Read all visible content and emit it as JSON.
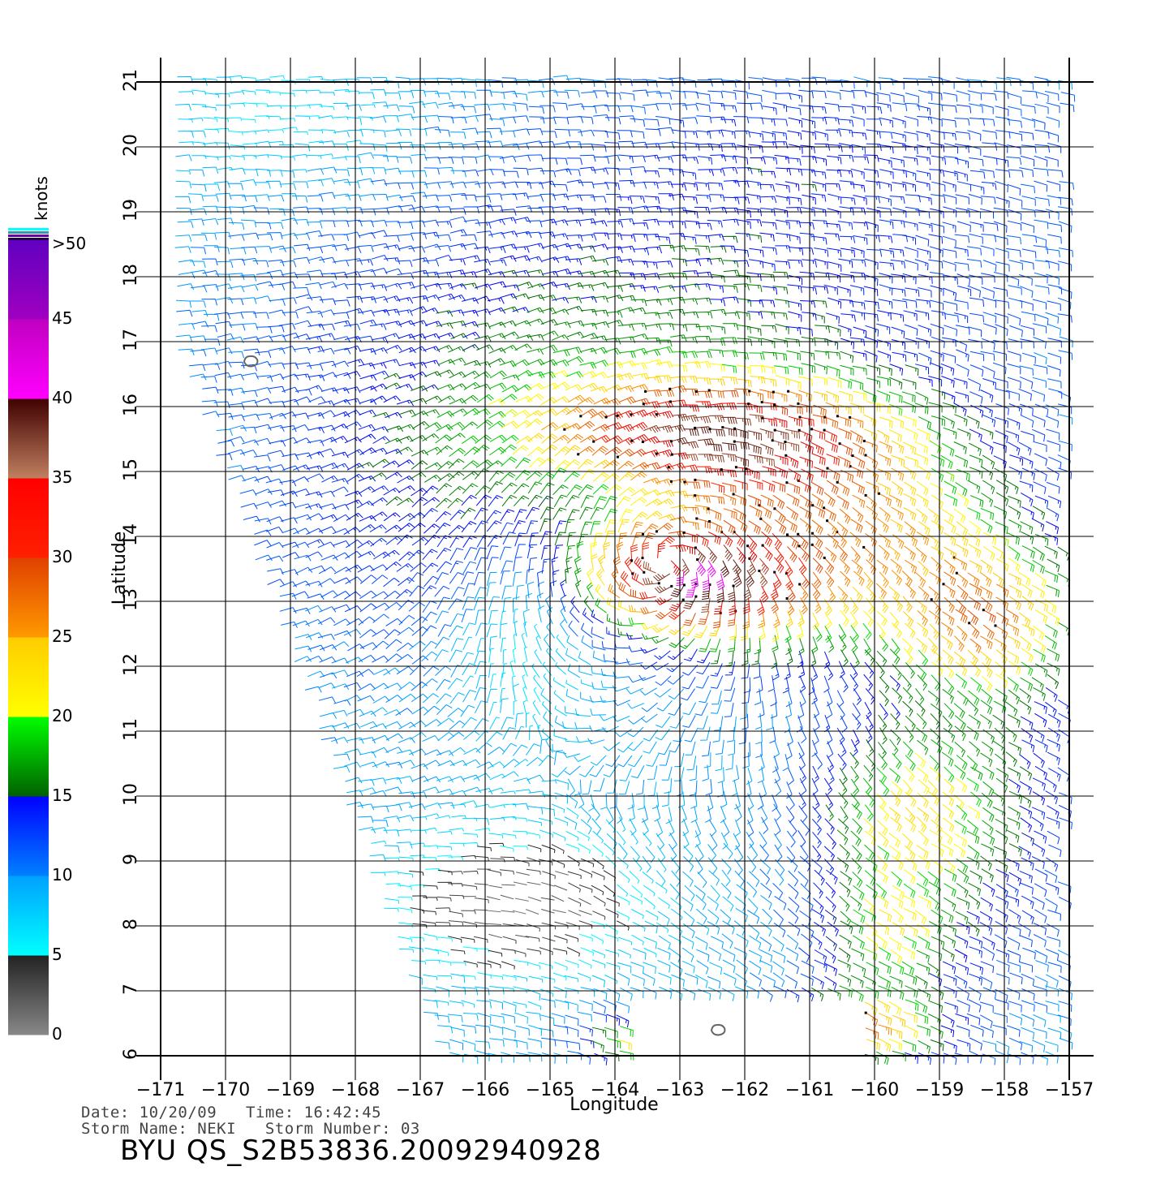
{
  "map": {
    "lon_range": [
      -171,
      -157
    ],
    "lat_range": [
      6,
      21
    ],
    "lon_ticks": [
      "−171",
      "−170",
      "−169",
      "−168",
      "−167",
      "−166",
      "−165",
      "−164",
      "−163",
      "−162",
      "−161",
      "−160",
      "−159",
      "−158",
      "−157"
    ],
    "lat_ticks": [
      "6",
      "7",
      "8",
      "9",
      "10",
      "11",
      "12",
      "13",
      "14",
      "15",
      "16",
      "17",
      "18",
      "19",
      "20",
      "21"
    ],
    "xlabel": "Longitude",
    "ylabel": "Latitude",
    "grid": true,
    "storm_center": [
      -163.2,
      13.6
    ],
    "island_markers": [
      [
        -169.6,
        16.7
      ],
      [
        -162.4,
        6.4
      ]
    ]
  },
  "colorbar": {
    "title": "knots",
    "labels": [
      ">50",
      "45",
      "40",
      "35",
      "30",
      "25",
      "20",
      "15",
      "10",
      "5",
      "0"
    ],
    "bands": [
      {
        "from": 0,
        "to": 5,
        "colors": [
          "#888888",
          "#222222"
        ]
      },
      {
        "from": 5,
        "to": 10,
        "colors": [
          "#00ffff",
          "#00a0ff"
        ]
      },
      {
        "from": 10,
        "to": 15,
        "colors": [
          "#0080ff",
          "#0000ff"
        ]
      },
      {
        "from": 15,
        "to": 20,
        "colors": [
          "#006000",
          "#00ff00"
        ]
      },
      {
        "from": 20,
        "to": 25,
        "colors": [
          "#ffff00",
          "#ffcc00"
        ]
      },
      {
        "from": 25,
        "to": 30,
        "colors": [
          "#ff9900",
          "#e04000"
        ]
      },
      {
        "from": 30,
        "to": 35,
        "colors": [
          "#ff2000",
          "#ff0000"
        ]
      },
      {
        "from": 35,
        "to": 40,
        "colors": [
          "#c08060",
          "#400000"
        ]
      },
      {
        "from": 40,
        "to": 45,
        "colors": [
          "#ff00ff",
          "#c000c0"
        ]
      },
      {
        "from": 45,
        "to": 50,
        "colors": [
          "#a000c0",
          "#6000c0"
        ]
      }
    ]
  },
  "info": {
    "date_line": "Date: 10/20/09   Time: 16:42:45",
    "storm_line": "Storm Name: NEKI   Storm Number: 03",
    "file_id": "BYU QS_S2B53836.20092940928"
  }
}
